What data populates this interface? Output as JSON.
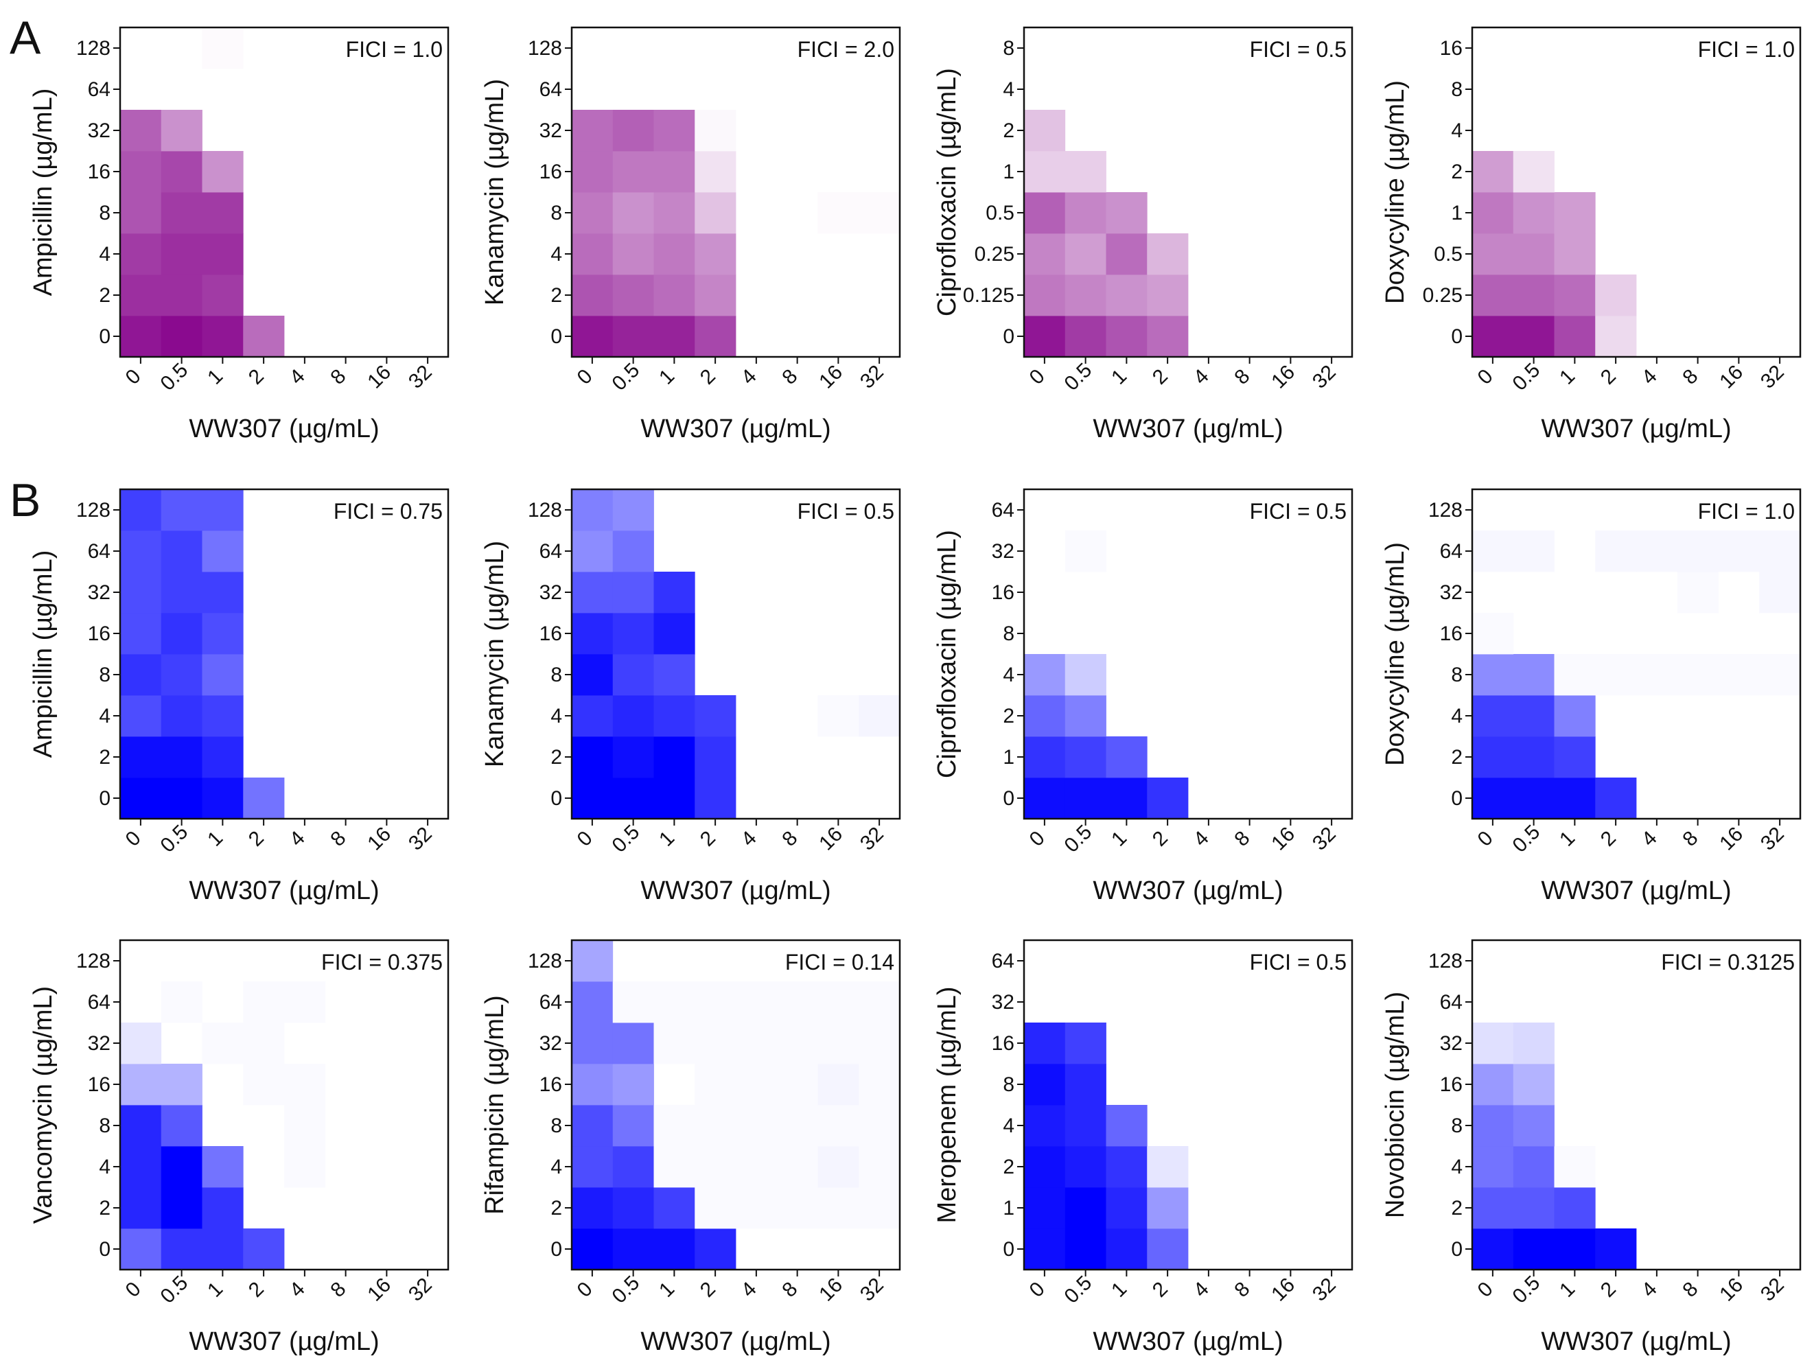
{
  "figure": {
    "panel_letters": [
      "A",
      "B"
    ]
  },
  "chart_data": [
    {
      "type": "heatmap",
      "panel": "A",
      "color": "#8a0a8f",
      "xlabel": "WW307 (µg/mL)",
      "ylabel": "Ampicillin (µg/mL)",
      "x_ticks": [
        "0",
        "0.5",
        "1",
        "2",
        "4",
        "8",
        "16",
        "32"
      ],
      "y_ticks": [
        "0",
        "2",
        "4",
        "8",
        "16",
        "32",
        "64",
        "128"
      ],
      "annotation": "FICI = 1.0",
      "values": [
        [
          0.95,
          1.0,
          0.95,
          0.6,
          0,
          0,
          0,
          0
        ],
        [
          0.85,
          0.85,
          0.8,
          0,
          0,
          0,
          0,
          0
        ],
        [
          0.8,
          0.85,
          0.85,
          0,
          0,
          0,
          0,
          0
        ],
        [
          0.7,
          0.8,
          0.8,
          0,
          0,
          0,
          0,
          0
        ],
        [
          0.7,
          0.75,
          0.45,
          0,
          0,
          0,
          0,
          0
        ],
        [
          0.65,
          0.45,
          0,
          0,
          0,
          0,
          0,
          0
        ],
        [
          0,
          0,
          0,
          0,
          0,
          0,
          0,
          0
        ],
        [
          0,
          0,
          0.02,
          0,
          0,
          0,
          0,
          0
        ]
      ]
    },
    {
      "type": "heatmap",
      "panel": "A",
      "color": "#8a0a8f",
      "xlabel": "WW307 (µg/mL)",
      "ylabel": "Kanamycin (µg/mL)",
      "x_ticks": [
        "0",
        "0.5",
        "1",
        "2",
        "4",
        "8",
        "16",
        "32"
      ],
      "y_ticks": [
        "0",
        "2",
        "4",
        "8",
        "16",
        "32",
        "64",
        "128"
      ],
      "annotation": "FICI = 2.0",
      "values": [
        [
          0.95,
          0.9,
          0.9,
          0.75,
          0,
          0,
          0,
          0
        ],
        [
          0.7,
          0.65,
          0.6,
          0.5,
          0,
          0,
          0,
          0
        ],
        [
          0.6,
          0.5,
          0.55,
          0.45,
          0,
          0,
          0,
          0
        ],
        [
          0.55,
          0.45,
          0.5,
          0.25,
          0,
          0,
          0.02,
          0.02
        ],
        [
          0.6,
          0.55,
          0.55,
          0.12,
          0,
          0,
          0,
          0
        ],
        [
          0.6,
          0.65,
          0.6,
          0.03,
          0,
          0,
          0,
          0
        ],
        [
          0,
          0,
          0,
          0,
          0,
          0,
          0,
          0
        ],
        [
          0,
          0,
          0,
          0,
          0,
          0,
          0,
          0
        ]
      ]
    },
    {
      "type": "heatmap",
      "panel": "A",
      "color": "#8a0a8f",
      "xlabel": "WW307 (µg/mL)",
      "ylabel": "Ciprofloxacin (µg/mL)",
      "x_ticks": [
        "0",
        "0.5",
        "1",
        "2",
        "4",
        "8",
        "16",
        "32"
      ],
      "y_ticks": [
        "0",
        "0.125",
        "0.25",
        "0.5",
        "1",
        "2",
        "4",
        "8"
      ],
      "annotation": "FICI = 0.5",
      "values": [
        [
          0.95,
          0.8,
          0.7,
          0.6,
          0,
          0,
          0,
          0
        ],
        [
          0.55,
          0.5,
          0.45,
          0.4,
          0,
          0,
          0,
          0
        ],
        [
          0.5,
          0.4,
          0.6,
          0.3,
          0,
          0,
          0,
          0
        ],
        [
          0.65,
          0.5,
          0.45,
          0,
          0,
          0,
          0,
          0
        ],
        [
          0.2,
          0.2,
          0,
          0,
          0,
          0,
          0,
          0
        ],
        [
          0.25,
          0,
          0,
          0,
          0,
          0,
          0,
          0
        ],
        [
          0,
          0,
          0,
          0,
          0,
          0,
          0,
          0
        ],
        [
          0,
          0,
          0,
          0,
          0,
          0,
          0,
          0
        ]
      ]
    },
    {
      "type": "heatmap",
      "panel": "A",
      "color": "#8a0a8f",
      "xlabel": "WW307 (µg/mL)",
      "ylabel": "Doxycyline (µg/mL)",
      "x_ticks": [
        "0",
        "0.5",
        "1",
        "2",
        "4",
        "8",
        "16",
        "32"
      ],
      "y_ticks": [
        "0",
        "0.25",
        "0.5",
        "1",
        "2",
        "4",
        "8",
        "16"
      ],
      "annotation": "FICI = 1.0",
      "values": [
        [
          0.95,
          0.95,
          0.75,
          0.15,
          0,
          0,
          0,
          0
        ],
        [
          0.65,
          0.65,
          0.6,
          0.2,
          0,
          0,
          0,
          0
        ],
        [
          0.5,
          0.5,
          0.4,
          0,
          0,
          0,
          0,
          0
        ],
        [
          0.55,
          0.45,
          0.4,
          0,
          0,
          0,
          0,
          0
        ],
        [
          0.4,
          0.12,
          0,
          0,
          0,
          0,
          0,
          0
        ],
        [
          0,
          0,
          0,
          0,
          0,
          0,
          0,
          0
        ],
        [
          0,
          0,
          0,
          0,
          0,
          0,
          0,
          0
        ],
        [
          0,
          0,
          0,
          0,
          0,
          0,
          0,
          0
        ]
      ]
    },
    {
      "type": "heatmap",
      "panel": "B",
      "color": "#0000ff",
      "xlabel": "WW307 (µg/mL)",
      "ylabel": "Ampicillin (µg/mL)",
      "x_ticks": [
        "0",
        "0.5",
        "1",
        "2",
        "4",
        "8",
        "16",
        "32"
      ],
      "y_ticks": [
        "0",
        "2",
        "4",
        "8",
        "16",
        "32",
        "64",
        "128"
      ],
      "annotation": "FICI = 0.75",
      "values": [
        [
          1.0,
          1.0,
          0.95,
          0.55,
          0,
          0,
          0,
          0
        ],
        [
          0.95,
          0.95,
          0.85,
          0,
          0,
          0,
          0,
          0
        ],
        [
          0.7,
          0.8,
          0.75,
          0,
          0,
          0,
          0,
          0
        ],
        [
          0.8,
          0.75,
          0.6,
          0,
          0,
          0,
          0,
          0
        ],
        [
          0.7,
          0.8,
          0.7,
          0,
          0,
          0,
          0,
          0
        ],
        [
          0.7,
          0.75,
          0.75,
          0,
          0,
          0,
          0,
          0
        ],
        [
          0.7,
          0.75,
          0.55,
          0,
          0,
          0,
          0,
          0
        ],
        [
          0.75,
          0.65,
          0.65,
          0,
          0,
          0,
          0,
          0
        ]
      ]
    },
    {
      "type": "heatmap",
      "panel": "B",
      "color": "#0000ff",
      "xlabel": "WW307 (µg/mL)",
      "ylabel": "Kanamycin (µg/mL)",
      "x_ticks": [
        "0",
        "0.5",
        "1",
        "2",
        "4",
        "8",
        "16",
        "32"
      ],
      "y_ticks": [
        "0",
        "2",
        "4",
        "8",
        "16",
        "32",
        "64",
        "128"
      ],
      "annotation": "FICI = 0.5",
      "values": [
        [
          1.0,
          1.0,
          1.0,
          0.8,
          0,
          0,
          0,
          0
        ],
        [
          1.0,
          0.95,
          1.0,
          0.8,
          0,
          0,
          0,
          0
        ],
        [
          0.8,
          0.85,
          0.8,
          0.75,
          0,
          0,
          0.02,
          0.04
        ],
        [
          0.95,
          0.75,
          0.7,
          0,
          0,
          0,
          0,
          0
        ],
        [
          0.85,
          0.8,
          0.9,
          0,
          0,
          0,
          0,
          0
        ],
        [
          0.65,
          0.65,
          0.8,
          0,
          0,
          0,
          0,
          0
        ],
        [
          0.45,
          0.55,
          0,
          0,
          0,
          0,
          0,
          0
        ],
        [
          0.5,
          0.45,
          0,
          0,
          0,
          0,
          0,
          0
        ]
      ]
    },
    {
      "type": "heatmap",
      "panel": "B",
      "color": "#0000ff",
      "xlabel": "WW307 (µg/mL)",
      "ylabel": "Ciprofloxacin (µg/mL)",
      "x_ticks": [
        "0",
        "0.5",
        "1",
        "2",
        "4",
        "8",
        "16",
        "32"
      ],
      "y_ticks": [
        "0",
        "1",
        "2",
        "4",
        "8",
        "16",
        "32",
        "64"
      ],
      "annotation": "FICI = 0.5",
      "values": [
        [
          0.95,
          0.95,
          0.95,
          0.8,
          0,
          0,
          0,
          0
        ],
        [
          0.8,
          0.75,
          0.65,
          0,
          0,
          0,
          0,
          0
        ],
        [
          0.6,
          0.5,
          0,
          0,
          0,
          0,
          0,
          0
        ],
        [
          0.4,
          0.2,
          0,
          0,
          0,
          0,
          0,
          0
        ],
        [
          0,
          0,
          0,
          0,
          0,
          0,
          0,
          0
        ],
        [
          0,
          0,
          0,
          0,
          0,
          0,
          0,
          0
        ],
        [
          0,
          0.02,
          0,
          0,
          0,
          0,
          0,
          0
        ],
        [
          0,
          0,
          0,
          0,
          0,
          0,
          0,
          0
        ]
      ]
    },
    {
      "type": "heatmap",
      "panel": "B",
      "color": "#0000ff",
      "xlabel": "WW307 (µg/mL)",
      "ylabel": "Doxycyline (µg/mL)",
      "x_ticks": [
        "0",
        "0.5",
        "1",
        "2",
        "4",
        "8",
        "16",
        "32"
      ],
      "y_ticks": [
        "0",
        "2",
        "4",
        "8",
        "16",
        "32",
        "64",
        "128"
      ],
      "annotation": "FICI = 1.0",
      "values": [
        [
          0.95,
          0.95,
          0.95,
          0.8,
          0,
          0,
          0,
          0
        ],
        [
          0.8,
          0.8,
          0.75,
          0,
          0,
          0,
          0,
          0
        ],
        [
          0.75,
          0.75,
          0.5,
          0,
          0,
          0,
          0,
          0
        ],
        [
          0.45,
          0.45,
          0.02,
          0.02,
          0.02,
          0.02,
          0.02,
          0.02
        ],
        [
          0.02,
          0,
          0,
          0,
          0,
          0,
          0,
          0
        ],
        [
          0,
          0,
          0,
          0,
          0,
          0.02,
          0,
          0.03
        ],
        [
          0.03,
          0.03,
          0,
          0.03,
          0.03,
          0.03,
          0.03,
          0.03
        ],
        [
          0,
          0,
          0,
          0,
          0,
          0,
          0,
          0
        ]
      ]
    },
    {
      "type": "heatmap",
      "panel": "B",
      "color": "#0000ff",
      "xlabel": "WW307 (µg/mL)",
      "ylabel": "Vancomycin (µg/mL)",
      "x_ticks": [
        "0",
        "0.5",
        "1",
        "2",
        "4",
        "8",
        "16",
        "32"
      ],
      "y_ticks": [
        "0",
        "2",
        "4",
        "8",
        "16",
        "32",
        "64",
        "128"
      ],
      "annotation": "FICI = 0.375",
      "values": [
        [
          0.6,
          0.8,
          0.8,
          0.7,
          0,
          0,
          0,
          0
        ],
        [
          0.85,
          1.0,
          0.8,
          0,
          0,
          0,
          0,
          0
        ],
        [
          0.85,
          1.0,
          0.55,
          0,
          0.02,
          0,
          0,
          0
        ],
        [
          0.85,
          0.65,
          0,
          0,
          0.02,
          0,
          0,
          0
        ],
        [
          0.3,
          0.3,
          0,
          0.02,
          0.02,
          0,
          0,
          0
        ],
        [
          0.1,
          0,
          0.02,
          0.02,
          0,
          0,
          0,
          0
        ],
        [
          0,
          0.02,
          0,
          0.02,
          0.02,
          0,
          0,
          0
        ],
        [
          0,
          0,
          0,
          0,
          0,
          0,
          0,
          0
        ]
      ]
    },
    {
      "type": "heatmap",
      "panel": "B",
      "color": "#0000ff",
      "xlabel": "WW307 (µg/mL)",
      "ylabel": "Rifampicin (µg/mL)",
      "x_ticks": [
        "0",
        "0.5",
        "1",
        "2",
        "4",
        "8",
        "16",
        "32"
      ],
      "y_ticks": [
        "0",
        "2",
        "4",
        "8",
        "16",
        "32",
        "64",
        "128"
      ],
      "annotation": "FICI = 0.14",
      "values": [
        [
          1.0,
          0.95,
          0.95,
          0.85,
          0,
          0,
          0,
          0
        ],
        [
          0.9,
          0.85,
          0.75,
          0.02,
          0.02,
          0.02,
          0.02,
          0.02
        ],
        [
          0.7,
          0.75,
          0.02,
          0.02,
          0.02,
          0.02,
          0.04,
          0.02
        ],
        [
          0.7,
          0.55,
          0.02,
          0.02,
          0.02,
          0.02,
          0.02,
          0.02
        ],
        [
          0.45,
          0.4,
          0,
          0.02,
          0.02,
          0.02,
          0.04,
          0.02
        ],
        [
          0.55,
          0.55,
          0.02,
          0.02,
          0.02,
          0.02,
          0.02,
          0.02
        ],
        [
          0.55,
          0.02,
          0.02,
          0.02,
          0.02,
          0.02,
          0.02,
          0.02
        ],
        [
          0.35,
          0,
          0,
          0,
          0,
          0,
          0,
          0
        ]
      ]
    },
    {
      "type": "heatmap",
      "panel": "B",
      "color": "#0000ff",
      "xlabel": "WW307 (µg/mL)",
      "ylabel": "Meropenem (µg/mL)",
      "x_ticks": [
        "0",
        "0.5",
        "1",
        "2",
        "4",
        "8",
        "16",
        "32"
      ],
      "y_ticks": [
        "0",
        "1",
        "2",
        "4",
        "8",
        "16",
        "32",
        "64"
      ],
      "annotation": "FICI = 0.5",
      "values": [
        [
          0.95,
          1.0,
          0.9,
          0.6,
          0,
          0,
          0,
          0
        ],
        [
          0.95,
          1.0,
          0.85,
          0.4,
          0,
          0,
          0,
          0
        ],
        [
          0.95,
          0.9,
          0.8,
          0.1,
          0,
          0,
          0,
          0
        ],
        [
          0.9,
          0.85,
          0.6,
          0,
          0,
          0,
          0,
          0
        ],
        [
          0.95,
          0.85,
          0,
          0,
          0,
          0,
          0,
          0
        ],
        [
          0.85,
          0.75,
          0,
          0,
          0,
          0,
          0,
          0
        ],
        [
          0,
          0,
          0,
          0,
          0,
          0,
          0,
          0
        ],
        [
          0,
          0,
          0,
          0,
          0,
          0,
          0,
          0
        ]
      ]
    },
    {
      "type": "heatmap",
      "panel": "B",
      "color": "#0000ff",
      "xlabel": "WW307 (µg/mL)",
      "ylabel": "Novobiocin (µg/mL)",
      "x_ticks": [
        "0",
        "0.5",
        "1",
        "2",
        "4",
        "8",
        "16",
        "32"
      ],
      "y_ticks": [
        "0",
        "2",
        "4",
        "8",
        "16",
        "32",
        "64",
        "128"
      ],
      "annotation": "FICI = 0.3125",
      "values": [
        [
          0.95,
          1.0,
          1.0,
          0.95,
          0,
          0,
          0,
          0
        ],
        [
          0.65,
          0.65,
          0.7,
          0,
          0,
          0,
          0,
          0
        ],
        [
          0.55,
          0.6,
          0.02,
          0,
          0,
          0,
          0,
          0
        ],
        [
          0.55,
          0.5,
          0,
          0,
          0,
          0,
          0,
          0
        ],
        [
          0.4,
          0.3,
          0,
          0,
          0,
          0,
          0,
          0
        ],
        [
          0.12,
          0.15,
          0,
          0,
          0,
          0,
          0,
          0
        ],
        [
          0,
          0,
          0,
          0,
          0,
          0,
          0,
          0
        ],
        [
          0,
          0,
          0,
          0,
          0,
          0,
          0,
          0
        ]
      ]
    }
  ]
}
